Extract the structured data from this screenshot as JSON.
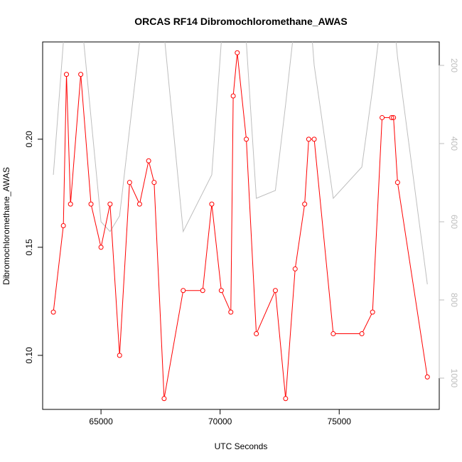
{
  "chart_data": {
    "type": "line",
    "title": "ORCAS RF14 Dibromochloromethane_AWAS",
    "xlabel": "UTC Seconds",
    "ylabel": "Dibromochloromethane_AWAS",
    "xlim": [
      62550,
      79200
    ],
    "ylim": [
      0.075,
      0.245
    ],
    "y2lim": [
      1080,
      140
    ],
    "x_ticks": [
      65000,
      70000,
      75000
    ],
    "x_tick_labels": [
      "65000",
      "70000",
      "75000"
    ],
    "y_ticks": [
      0.1,
      0.15,
      0.2
    ],
    "y_tick_labels": [
      "0.10",
      "0.15",
      "0.20"
    ],
    "y2_ticks": [
      200,
      400,
      600,
      800,
      1000
    ],
    "y2_tick_labels": [
      "200",
      "400",
      "600",
      "800",
      "1000"
    ],
    "colors": {
      "series": "#ff0000",
      "secondary": "#bebebe",
      "axis": "#000000",
      "axis2": "#bebebe"
    },
    "series": [
      {
        "x": [
          63000,
          63420,
          63550,
          63720,
          64150,
          64580,
          65000,
          65380,
          65780,
          66200,
          66620,
          67000,
          67230,
          67650,
          68450,
          69270,
          69650,
          70050,
          70450,
          70550,
          70720,
          71100,
          71520,
          72320,
          72750,
          73150,
          73550,
          73720,
          73950,
          74750,
          75950,
          76400,
          76800,
          77200,
          77280,
          77450,
          78700
        ],
        "y": [
          0.12,
          0.16,
          0.23,
          0.17,
          0.23,
          0.17,
          0.15,
          0.17,
          0.1,
          0.18,
          0.17,
          0.19,
          0.18,
          0.08,
          0.13,
          0.13,
          0.17,
          0.13,
          0.12,
          0.22,
          0.24,
          0.2,
          0.11,
          0.13,
          0.08,
          0.14,
          0.17,
          0.2,
          0.2,
          0.11,
          0.11,
          0.12,
          0.21,
          0.21,
          0.21,
          0.18,
          0.09
        ]
      },
      {
        "axis": "right",
        "x": [
          63000,
          63420,
          63720,
          64150,
          65000,
          65380,
          65780,
          66620,
          67000,
          67230,
          67650,
          68450,
          69650,
          70050,
          70720,
          71100,
          71520,
          72320,
          72750,
          73150,
          73550,
          73720,
          73950,
          74750,
          75950,
          76400,
          76800,
          77200,
          77450,
          78700
        ],
        "y": [
          480,
          140,
          20,
          60,
          600,
          625,
          585,
          140,
          20,
          20,
          120,
          625,
          480,
          140,
          40,
          140,
          540,
          520,
          300,
          80,
          20,
          20,
          200,
          540,
          460,
          260,
          60,
          20,
          180,
          760
        ]
      }
    ]
  }
}
